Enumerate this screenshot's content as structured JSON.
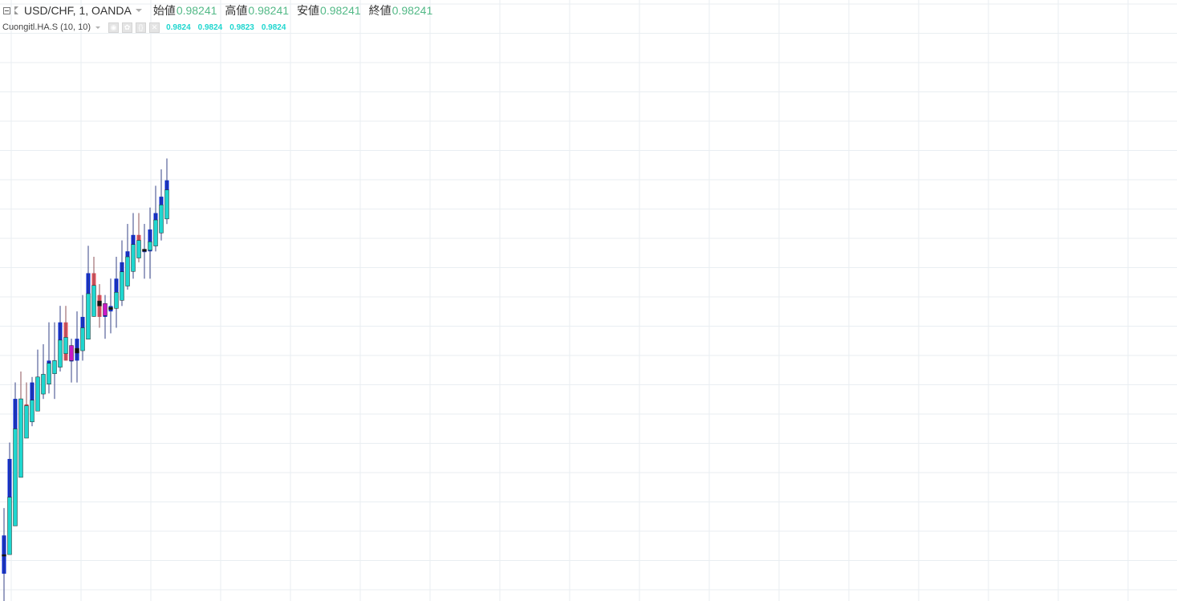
{
  "header": {
    "symbol": "USD/CHF, 1, OANDA",
    "ohlc": [
      {
        "label": "始値",
        "value": "0.98241"
      },
      {
        "label": "高値",
        "value": "0.98241"
      },
      {
        "label": "安値",
        "value": "0.98241"
      },
      {
        "label": "終値",
        "value": "0.98241"
      }
    ]
  },
  "indicator": {
    "name": "Cuongitl.HA.S (10, 10)",
    "buttons": [
      "eye-icon",
      "gear-icon",
      "source-icon",
      "remove-icon"
    ],
    "values": [
      "0.9824",
      "0.9824",
      "0.9823",
      "0.9824"
    ]
  },
  "colors": {
    "up": "#0b2ad1",
    "down": "#e0505c",
    "ha_up": "#1fd6cf",
    "ha_down": "#c818c8",
    "doji": "#111111",
    "grid": "#e9eef2",
    "ohlc_value": "#53b987"
  },
  "chart_data": {
    "type": "candlestick",
    "price_range": [
      0.98185,
      0.98295
    ],
    "grid": true,
    "x": [
      0,
      1,
      2,
      3,
      4,
      5,
      6,
      7,
      8,
      9,
      10,
      11,
      12,
      13,
      14,
      15,
      16,
      17,
      18,
      19,
      20,
      21,
      22,
      23,
      24,
      25,
      26,
      27,
      28,
      29,
      30,
      31,
      32,
      33,
      34,
      35,
      36,
      37,
      38,
      39,
      40,
      41,
      42,
      43,
      44,
      45,
      46,
      47,
      48,
      49,
      50,
      51,
      52,
      53,
      54,
      55,
      56,
      57,
      58,
      59,
      60,
      61,
      62,
      63,
      64,
      65,
      66,
      67,
      68,
      69,
      70,
      71,
      72,
      73,
      74,
      75,
      76,
      77,
      78,
      79,
      80,
      81,
      82,
      83,
      84,
      85,
      86,
      87,
      88,
      89,
      90,
      91,
      92,
      93,
      94,
      95,
      96,
      97,
      98,
      99,
      100,
      101,
      102,
      103,
      104,
      105,
      106,
      107,
      108,
      109,
      110,
      111,
      112,
      113,
      114,
      115,
      116,
      117,
      118,
      119,
      120,
      121,
      122,
      123,
      124,
      125,
      126,
      127,
      128,
      129,
      130,
      131,
      132,
      133,
      134,
      135,
      136,
      137,
      138,
      139,
      140,
      141,
      142,
      143,
      144,
      145,
      146,
      147,
      148,
      149,
      150,
      151,
      152,
      153,
      154,
      155,
      156,
      157,
      158,
      159,
      160,
      161,
      162,
      163,
      164,
      165,
      166,
      167,
      168,
      169,
      170,
      171,
      172,
      173,
      174,
      175,
      176,
      177,
      178,
      179,
      180,
      181,
      182,
      183,
      184,
      185,
      186,
      187,
      188,
      189,
      190,
      191,
      192,
      193,
      194,
      195,
      196,
      197,
      198,
      199,
      200,
      201,
      202,
      203,
      204,
      205,
      206,
      207,
      208,
      209,
      210
    ],
    "series": [
      {
        "kind": "candles",
        "ohlc": [
          [
            0.9819,
            0.98202,
            0.98185,
            0.98197
          ],
          [
            0.98197,
            0.98214,
            0.98194,
            0.98211
          ],
          [
            0.98211,
            0.98225,
            0.98208,
            0.98222
          ],
          [
            0.98222,
            0.98227,
            0.98218,
            0.98221
          ],
          [
            0.98221,
            0.98225,
            0.98218,
            0.98219
          ],
          [
            0.98219,
            0.98226,
            0.98217,
            0.98225
          ],
          [
            0.98225,
            0.98231,
            0.98222,
            0.98226
          ],
          [
            0.98226,
            0.98232,
            0.98222,
            0.98226
          ],
          [
            0.98226,
            0.98236,
            0.98223,
            0.98229
          ],
          [
            0.98229,
            0.98236,
            0.98222,
            0.98229
          ],
          [
            0.98229,
            0.98239,
            0.98227,
            0.98236
          ],
          [
            0.98236,
            0.98239,
            0.98229,
            0.98229
          ],
          [
            0.98229,
            0.98233,
            0.98225,
            0.98229
          ],
          [
            0.98229,
            0.98238,
            0.98225,
            0.98233
          ],
          [
            0.98233,
            0.98241,
            0.98229,
            0.98237
          ],
          [
            0.98237,
            0.9825,
            0.98233,
            0.98245
          ],
          [
            0.98245,
            0.98248,
            0.98237,
            0.98241
          ],
          [
            0.98241,
            0.98243,
            0.98235,
            0.98237
          ],
          [
            0.98237,
            0.98241,
            0.98233,
            0.98238
          ],
          [
            0.98238,
            0.98244,
            0.98234,
            0.98239
          ],
          [
            0.98239,
            0.98248,
            0.98235,
            0.98244
          ],
          [
            0.98244,
            0.98251,
            0.98239,
            0.98247
          ],
          [
            0.98247,
            0.98254,
            0.98242,
            0.98249
          ],
          [
            0.98249,
            0.98256,
            0.98244,
            0.98252
          ],
          [
            0.98252,
            0.98256,
            0.98247,
            0.98249
          ],
          [
            0.98249,
            0.98254,
            0.98244,
            0.98249
          ],
          [
            0.98249,
            0.98257,
            0.98244,
            0.98253
          ],
          [
            0.98253,
            0.98261,
            0.98249,
            0.98256
          ],
          [
            0.98256,
            0.98264,
            0.98251,
            0.98259
          ],
          [
            0.98259,
            0.98266,
            0.98254,
            0.98262
          ]
        ]
      }
    ]
  }
}
